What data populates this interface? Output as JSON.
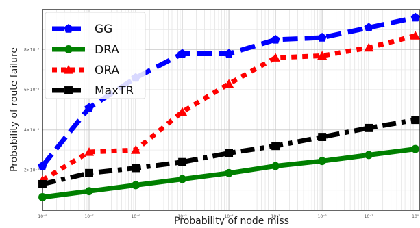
{
  "chart_data": {
    "type": "line",
    "title": "",
    "xlabel": "Probability of node miss",
    "ylabel": "Probability of route failure",
    "x": [
      1,
      2,
      3,
      4,
      5,
      6,
      7,
      8,
      9
    ],
    "x_ticks": [
      "10⁻⁸",
      "10⁻⁷",
      "10⁻⁶",
      "10⁻⁵",
      "10⁻⁴",
      "10⁻³",
      "10⁻²",
      "10⁻¹",
      "10⁰"
    ],
    "y_ticks": [
      "2×10⁻³",
      "4×10⁻³",
      "6×10⁻³",
      "8×10⁻³"
    ],
    "ylim": [
      0,
      10
    ],
    "grid": true,
    "legend_position": "top-left",
    "series": [
      {
        "name": "GG",
        "color": "#0000ff",
        "dash": "long-dash",
        "marker": "pentagon",
        "values": [
          2.2,
          5.1,
          6.6,
          7.8,
          7.8,
          8.5,
          8.6,
          9.1,
          9.6
        ]
      },
      {
        "name": "DRA",
        "color": "#008000",
        "dash": "solid",
        "marker": "circle",
        "values": [
          0.65,
          0.95,
          1.25,
          1.55,
          1.85,
          2.2,
          2.45,
          2.75,
          3.05
        ]
      },
      {
        "name": "ORA",
        "color": "#ff0000",
        "dash": "dotted",
        "marker": "triangle",
        "values": [
          1.5,
          2.9,
          3.0,
          4.9,
          6.3,
          7.6,
          7.7,
          8.1,
          8.7
        ]
      },
      {
        "name": "MaxTR",
        "color": "#000000",
        "dash": "dash-dot",
        "marker": "square",
        "values": [
          1.3,
          1.85,
          2.1,
          2.4,
          2.85,
          3.2,
          3.65,
          4.1,
          4.5
        ]
      }
    ]
  }
}
